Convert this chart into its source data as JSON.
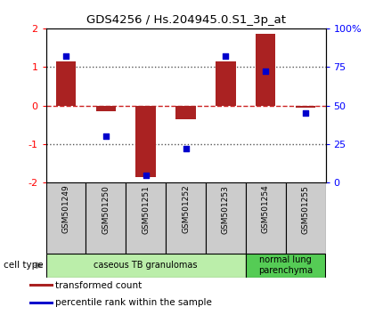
{
  "title": "GDS4256 / Hs.204945.0.S1_3p_at",
  "samples": [
    "GSM501249",
    "GSM501250",
    "GSM501251",
    "GSM501252",
    "GSM501253",
    "GSM501254",
    "GSM501255"
  ],
  "transformed_count": [
    1.15,
    -0.15,
    -1.85,
    -0.35,
    1.15,
    1.85,
    -0.05
  ],
  "percentile_rank": [
    82,
    30,
    5,
    22,
    82,
    72,
    45
  ],
  "ylim": [
    -2,
    2
  ],
  "y2lim": [
    0,
    100
  ],
  "yticks": [
    -2,
    -1,
    0,
    1,
    2
  ],
  "y2ticks": [
    0,
    25,
    50,
    75,
    100
  ],
  "ytick_labels": [
    "-2",
    "-1",
    "0",
    "1",
    "2"
  ],
  "y2tick_labels": [
    "0",
    "25",
    "50",
    "75",
    "100%"
  ],
  "bar_color": "#aa2222",
  "dot_color": "#0000cc",
  "zero_line_color": "#cc2222",
  "dotted_line_color": "#555555",
  "sample_box_color": "#cccccc",
  "cell_type_groups": [
    {
      "label": "caseous TB granulomas",
      "samples": [
        0,
        1,
        2,
        3,
        4
      ],
      "color": "#bbeeaa"
    },
    {
      "label": "normal lung\nparenchyma",
      "samples": [
        5,
        6
      ],
      "color": "#55cc55"
    }
  ],
  "cell_type_label": "cell type",
  "legend_items": [
    {
      "color": "#aa2222",
      "label": "transformed count"
    },
    {
      "color": "#0000cc",
      "label": "percentile rank within the sample"
    }
  ],
  "fig_width": 4.3,
  "fig_height": 3.54,
  "dpi": 100
}
